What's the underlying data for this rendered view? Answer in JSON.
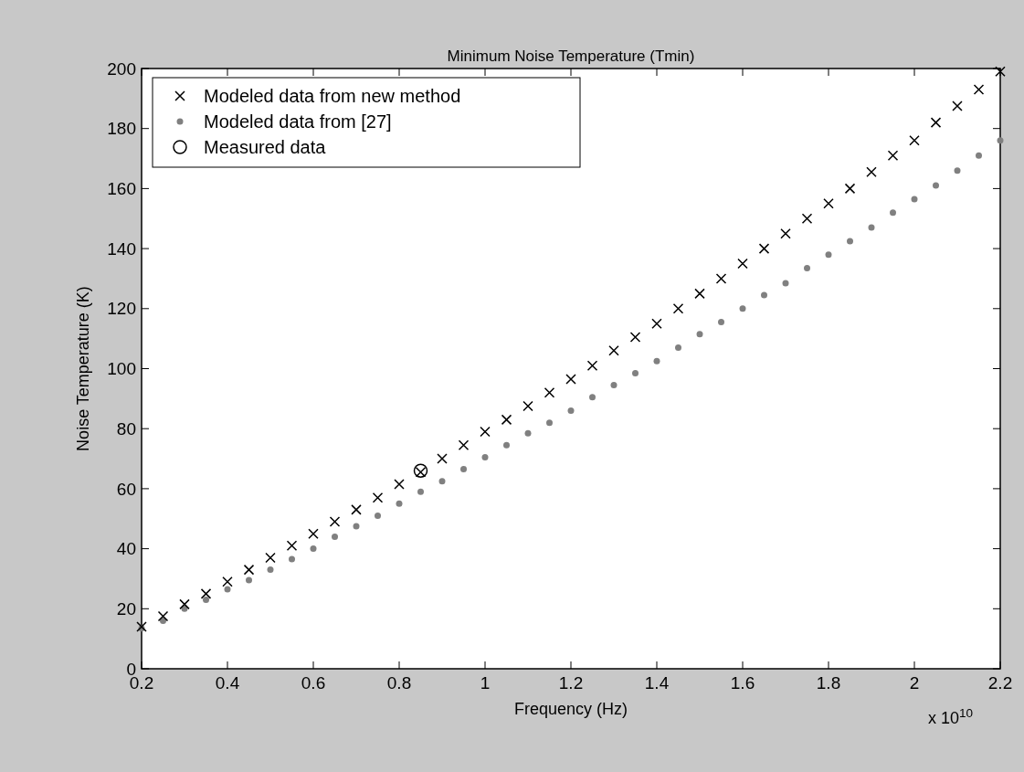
{
  "chart_data": {
    "type": "scatter",
    "title": "Minimum Noise Temperature (Tmin)",
    "xlabel": "Frequency (Hz)",
    "ylabel": "Noise Temperature (K)",
    "x": [
      0.2,
      0.25,
      0.3,
      0.35,
      0.4,
      0.45,
      0.5,
      0.55,
      0.6,
      0.65,
      0.7,
      0.75,
      0.8,
      0.85,
      0.9,
      0.95,
      1.0,
      1.05,
      1.1,
      1.15,
      1.2,
      1.25,
      1.3,
      1.35,
      1.4,
      1.45,
      1.5,
      1.55,
      1.6,
      1.65,
      1.7,
      1.75,
      1.8,
      1.85,
      1.9,
      1.95,
      2.0,
      2.05,
      2.1,
      2.15,
      2.2
    ],
    "series": [
      {
        "name": "Modeled data from new method",
        "color": "#000000",
        "marker": "cross",
        "values": [
          14,
          17.5,
          21.5,
          25,
          29,
          33,
          37,
          41,
          45,
          49,
          53,
          57,
          61.5,
          65.5,
          70,
          74.5,
          79,
          83,
          87.5,
          92,
          96.5,
          101,
          106,
          110.5,
          115,
          120,
          125,
          130,
          135,
          140,
          145,
          150,
          155,
          160,
          165.5,
          171,
          176,
          182,
          187.5,
          193,
          199
        ]
      },
      {
        "name": "Modeled data from [27]",
        "color": "#808080",
        "marker": "circle",
        "values": [
          13.5,
          16,
          20,
          23,
          26.5,
          29.5,
          33,
          36.5,
          40,
          44,
          47.5,
          51,
          55,
          59,
          62.5,
          66.5,
          70.5,
          74.5,
          78.5,
          82,
          86,
          90.5,
          94.5,
          98.5,
          102.5,
          107,
          111.5,
          115.5,
          120,
          124.5,
          128.5,
          133.5,
          138,
          142.5,
          147,
          152,
          156.5,
          161,
          166,
          171,
          176
        ]
      },
      {
        "name": "Measured data",
        "color": "#000000",
        "marker": "circle",
        "x": [
          0.85
        ],
        "values": [
          66
        ]
      }
    ],
    "xlim": [
      0.2,
      2.2
    ],
    "ylim": [
      0,
      200
    ],
    "xticks": [
      0.2,
      0.4,
      0.6,
      0.8,
      1,
      1.2,
      1.4,
      1.6,
      1.8,
      2,
      2.2
    ],
    "yticks": [
      0,
      20,
      40,
      60,
      80,
      100,
      120,
      140,
      160,
      180,
      200
    ],
    "annotations": [
      "x 10$^{10}$"
    ],
    "grid": false,
    "legend": "top left"
  }
}
